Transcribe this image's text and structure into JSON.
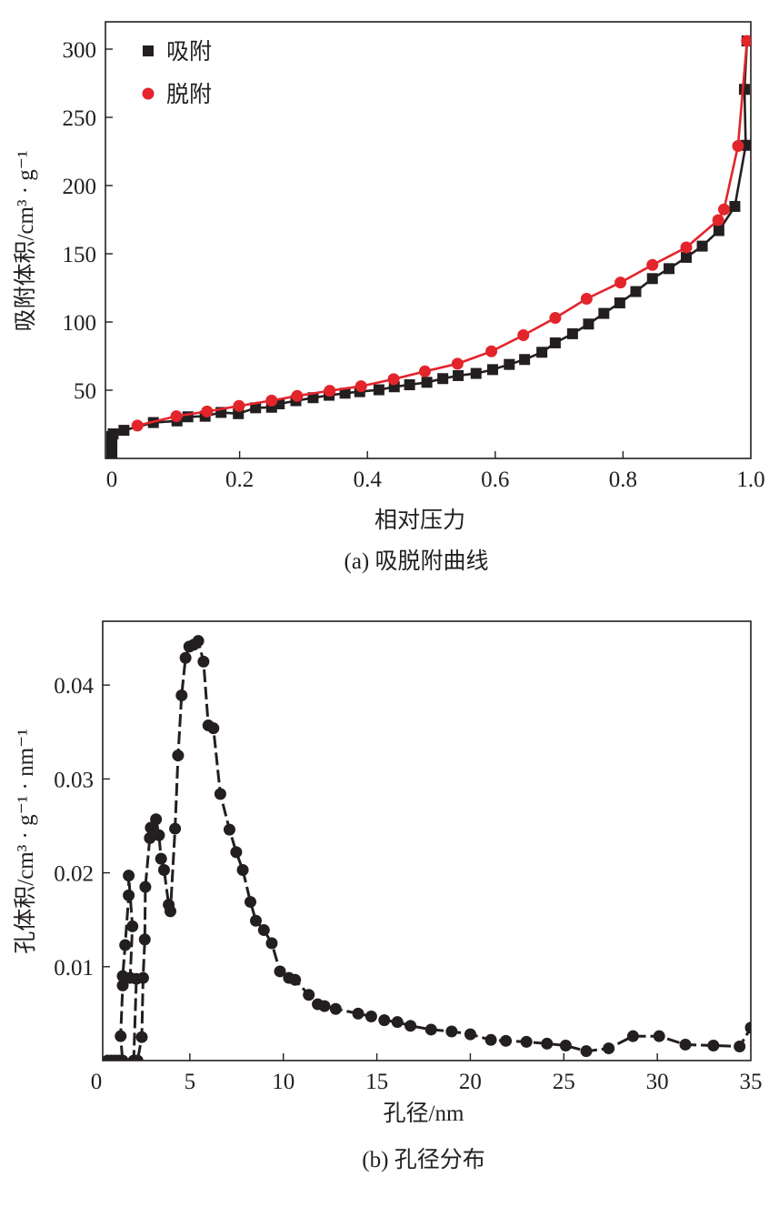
{
  "chart_data": [
    {
      "type": "line",
      "caption": "(a) 吸脱附曲线",
      "xlabel": "相对压力",
      "ylabel": "吸附体积/cm³ · g⁻¹",
      "xlim": [
        -0.01,
        1.0
      ],
      "ylim": [
        0,
        320
      ],
      "xticks": [
        0,
        0.2,
        0.4,
        0.6,
        0.8,
        1.0
      ],
      "xtick_labels": [
        "0",
        "0.2",
        "0.4",
        "0.6",
        "0.8",
        "1.0"
      ],
      "yticks": [
        0,
        50,
        100,
        150,
        200,
        250,
        300
      ],
      "ytick_labels": [
        "0",
        "50",
        "100",
        "150",
        "200",
        "250",
        "300"
      ],
      "grid": false,
      "legend_position": "top-left",
      "series": [
        {
          "name": "吸附",
          "marker": "square",
          "color": "#231f20",
          "points": [
            [
              0,
              2
            ],
            [
              0,
              5
            ],
            [
              0,
              8
            ],
            [
              0,
              10
            ],
            [
              0,
              12
            ],
            [
              0,
              14
            ],
            [
              0,
              16
            ],
            [
              0.002,
              18
            ],
            [
              0.019,
              20.6
            ],
            [
              0.065,
              26.3
            ],
            [
              0.102,
              27.5
            ],
            [
              0.119,
              30.5
            ],
            [
              0.146,
              30.9
            ],
            [
              0.171,
              33.7
            ],
            [
              0.198,
              32.8
            ],
            [
              0.225,
              37.1
            ],
            [
              0.25,
              37.5
            ],
            [
              0.262,
              40
            ],
            [
              0.288,
              42.3
            ],
            [
              0.315,
              44.5
            ],
            [
              0.34,
              46.3
            ],
            [
              0.365,
              47.8
            ],
            [
              0.388,
              48.9
            ],
            [
              0.418,
              50.3
            ],
            [
              0.442,
              52.5
            ],
            [
              0.466,
              54
            ],
            [
              0.493,
              55.8
            ],
            [
              0.518,
              58.5
            ],
            [
              0.542,
              60.7
            ],
            [
              0.57,
              62.3
            ],
            [
              0.596,
              65.1
            ],
            [
              0.622,
              68.9
            ],
            [
              0.646,
              72.5
            ],
            [
              0.673,
              77.8
            ],
            [
              0.694,
              84.7
            ],
            [
              0.721,
              91.4
            ],
            [
              0.746,
              98.5
            ],
            [
              0.77,
              106.3
            ],
            [
              0.795,
              114
            ],
            [
              0.82,
              122.3
            ],
            [
              0.846,
              131.8
            ],
            [
              0.872,
              139.1
            ],
            [
              0.899,
              147.4
            ],
            [
              0.924,
              155.6
            ],
            [
              0.95,
              167
            ],
            [
              0.975,
              184.7
            ],
            [
              0.992,
              229.5
            ],
            [
              0.99,
              270.5
            ],
            [
              0.994,
              306
            ]
          ]
        },
        {
          "name": "脱附",
          "marker": "circle",
          "color": "#e3242b",
          "points": [
            [
              0.994,
              306
            ],
            [
              0.98,
              229
            ],
            [
              0.958,
              182.5
            ],
            [
              0.949,
              174.7
            ],
            [
              0.899,
              154.7
            ],
            [
              0.846,
              141.8
            ],
            [
              0.796,
              128.9
            ],
            [
              0.743,
              117
            ],
            [
              0.694,
              103
            ],
            [
              0.644,
              90.3
            ],
            [
              0.594,
              78.5
            ],
            [
              0.541,
              69.4
            ],
            [
              0.49,
              63.8
            ],
            [
              0.441,
              58.1
            ],
            [
              0.39,
              52.9
            ],
            [
              0.341,
              49.6
            ],
            [
              0.29,
              45.8
            ],
            [
              0.25,
              42.4
            ],
            [
              0.199,
              38.5
            ],
            [
              0.149,
              34.4
            ],
            [
              0.101,
              30.9
            ],
            [
              0.04,
              24.1
            ]
          ]
        }
      ]
    },
    {
      "type": "line",
      "caption": "(b) 孔径分布",
      "xlabel": "孔径/nm",
      "ylabel": "孔体积/cm³ · g⁻¹ · nm⁻¹",
      "xlim": [
        0.34,
        35
      ],
      "ylim": [
        0,
        0.0468
      ],
      "xticks": [
        0,
        5,
        10,
        15,
        20,
        25,
        30,
        35
      ],
      "xtick_labels": [
        "0",
        "5",
        "10",
        "15",
        "20",
        "25",
        "30",
        "35"
      ],
      "yticks": [
        0.01,
        0.02,
        0.03,
        0.04
      ],
      "ytick_labels": [
        "0.01",
        "0.02",
        "0.03",
        "0.04"
      ],
      "grid": false,
      "series": [
        {
          "marker": "circle",
          "color": "#231f20",
          "points": [
            [
              0.6,
              0
            ],
            [
              0.8,
              0
            ],
            [
              1.0,
              0
            ],
            [
              1.2,
              0
            ],
            [
              1.4,
              0
            ],
            [
              1.3,
              0.0026
            ],
            [
              1.41,
              0.008
            ],
            [
              1.41,
              0.009
            ],
            [
              1.54,
              0.0123
            ],
            [
              1.73,
              0.0176
            ],
            [
              1.73,
              0.0197
            ],
            [
              1.93,
              0.0143
            ],
            [
              1.81,
              0.0088
            ],
            [
              2.14,
              0.0087
            ],
            [
              2.0,
              0
            ],
            [
              2.2,
              0
            ],
            [
              2.43,
              0.0025
            ],
            [
              2.5,
              0.0088
            ],
            [
              2.59,
              0.0129
            ],
            [
              2.62,
              0.0185
            ],
            [
              2.86,
              0.0237
            ],
            [
              2.91,
              0.0248
            ],
            [
              3.19,
              0.0257
            ],
            [
              3.35,
              0.024
            ],
            [
              3.46,
              0.0215
            ],
            [
              3.62,
              0.0203
            ],
            [
              3.87,
              0.0166
            ],
            [
              3.96,
              0.0159
            ],
            [
              4.21,
              0.0247
            ],
            [
              4.37,
              0.0325
            ],
            [
              4.56,
              0.0389
            ],
            [
              4.77,
              0.0429
            ],
            [
              4.97,
              0.0441
            ],
            [
              5.21,
              0.0443
            ],
            [
              5.45,
              0.0447
            ],
            [
              5.73,
              0.0425
            ],
            [
              5.99,
              0.0357
            ],
            [
              6.26,
              0.0354
            ],
            [
              6.63,
              0.0284
            ],
            [
              7.12,
              0.0246
            ],
            [
              7.48,
              0.0222
            ],
            [
              7.83,
              0.0203
            ],
            [
              8.24,
              0.0169
            ],
            [
              8.53,
              0.0149
            ],
            [
              8.96,
              0.0139
            ],
            [
              9.38,
              0.0125
            ],
            [
              9.82,
              0.0095
            ],
            [
              10.3,
              0.0088
            ],
            [
              10.63,
              0.0086
            ],
            [
              11.36,
              0.007
            ],
            [
              11.84,
              0.006
            ],
            [
              12.2,
              0.0058
            ],
            [
              12.8,
              0.0055
            ],
            [
              14.0,
              0.005
            ],
            [
              14.7,
              0.0047
            ],
            [
              15.4,
              0.0043
            ],
            [
              16.1,
              0.0041
            ],
            [
              16.8,
              0.0037
            ],
            [
              17.9,
              0.0033
            ],
            [
              19.0,
              0.0031
            ],
            [
              20.0,
              0.0028
            ],
            [
              21.1,
              0.0022
            ],
            [
              21.9,
              0.0021
            ],
            [
              23.0,
              0.002
            ],
            [
              24.1,
              0.0018
            ],
            [
              25.1,
              0.0016
            ],
            [
              26.2,
              0.001
            ],
            [
              27.4,
              0.0013
            ],
            [
              28.7,
              0.0026
            ],
            [
              30.1,
              0.0026
            ],
            [
              31.5,
              0.0017
            ],
            [
              33.0,
              0.0016
            ],
            [
              34.4,
              0.0015
            ],
            [
              35.0,
              0.0035
            ]
          ]
        }
      ]
    }
  ]
}
